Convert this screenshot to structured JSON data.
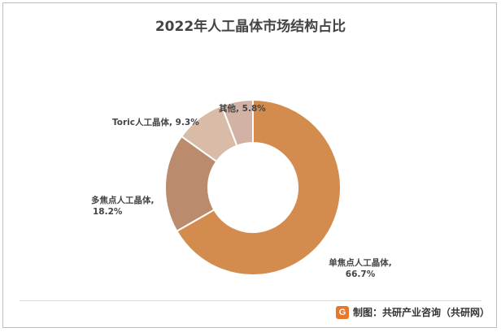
{
  "chart_data": {
    "type": "pie",
    "title": "2022年人工晶体市场结构占比",
    "donut": true,
    "series": [
      {
        "name": "",
        "values": [
          66.7,
          18.2,
          9.3,
          5.8
        ]
      }
    ],
    "categories": [
      "单焦点人工晶体",
      "多焦点人工晶体",
      "Toric人工晶体",
      "其他"
    ],
    "value_labels": [
      "66.7%",
      "18.2%",
      "9.3%",
      "5.8%"
    ],
    "slice_colors": [
      "#d38c4e",
      "#ba8c6d",
      "#d8bca7",
      "#d3b2a6"
    ],
    "legend": "none"
  },
  "labels": [
    {
      "name": "单焦点人工晶体,",
      "value": "66.7%"
    },
    {
      "name": "多焦点人工晶体,",
      "value": "18.2%"
    },
    {
      "name": "Toric人工晶体,",
      "value": "9.3%"
    },
    {
      "name": "其他,",
      "value": "5.8%"
    }
  ],
  "source": {
    "logo_glyph": "G",
    "text": "制图：共研产业咨询（共研网）"
  }
}
